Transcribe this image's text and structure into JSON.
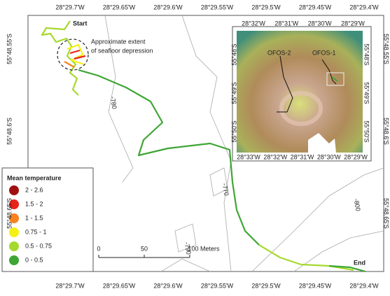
{
  "map": {
    "top_axis_labels": [
      "28°29.7'W",
      "28°29.65'W",
      "28°29.6'W",
      "28°29.55'W",
      "28°29.5'W",
      "28°29.45'W",
      "28°29.4'W"
    ],
    "bottom_axis_labels": [
      "28°29.7'W",
      "28°29.65'W",
      "28°29.6'W",
      "28°29.55'W",
      "28°29.5'W",
      "28°29.45'W",
      "28°29.4'W"
    ],
    "left_axis_labels": [
      "55°48.55'S",
      "55°48.6'S",
      "55°48.65'S"
    ],
    "right_axis_labels": [
      "55°48.55'S",
      "55°48.6'S",
      "55°48.65'S"
    ],
    "annotations": {
      "start": "Start",
      "end": "End",
      "depression": [
        "Approximate extent",
        "of seafloor depression"
      ]
    },
    "contour_labels": [
      "-780",
      "-770",
      "-790",
      "-800"
    ],
    "legend": {
      "title": "Mean temperature",
      "items": [
        {
          "label": "2 - 2.6",
          "color": "#a01010"
        },
        {
          "label": "1.5 - 2",
          "color": "#e8231a"
        },
        {
          "label": "1 - 1.5",
          "color": "#f7831e"
        },
        {
          "label": "0.75 - 1",
          "color": "#f5f014"
        },
        {
          "label": "0.5 - 0.75",
          "color": "#a6d92e"
        },
        {
          "label": "0 - 0.5",
          "color": "#3fa535"
        }
      ]
    },
    "scale_bar": {
      "labels": [
        "0",
        "50",
        "100 Meters"
      ]
    },
    "inset": {
      "top_labels": [
        "28°32'W",
        "28°31'W",
        "28°30'W",
        "28°29'W"
      ],
      "bottom_labels": [
        "28°33'W",
        "28°32'W",
        "28°31'W",
        "28°30'W",
        "28°29'W"
      ],
      "left_labels": [
        "55°48'S",
        "55°49'S",
        "55°50'S"
      ],
      "right_labels": [
        "55°48'S",
        "55°49'S",
        "55°50'S"
      ],
      "track_labels": [
        "OFOS-2",
        "OFOS-1"
      ]
    }
  }
}
